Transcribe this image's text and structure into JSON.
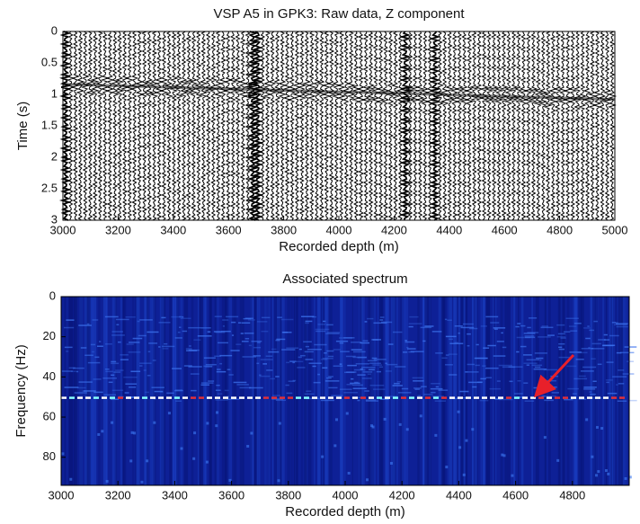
{
  "chart_data": [
    {
      "type": "wiggle",
      "title": "VSP A5 in GPK3: Raw data, Z component",
      "x_label": "Recorded depth (m)",
      "y_label": "Time (s)",
      "xlim": [
        3000,
        5000
      ],
      "xticks": [
        3000,
        3200,
        3400,
        3600,
        3800,
        4000,
        4200,
        4400,
        4600,
        4800,
        5000
      ],
      "ylim": [
        0,
        3
      ],
      "yticks": [
        0,
        0.5,
        1,
        1.5,
        2,
        2.5,
        3
      ],
      "y_reversed": true
    },
    {
      "type": "spectrogram",
      "title": "Associated spectrum",
      "x_label": "Recorded depth (m)",
      "y_label": "Frequency (Hz)",
      "xlim": [
        3000,
        5000
      ],
      "xticks": [
        3000,
        3200,
        3400,
        3600,
        3800,
        4000,
        4200,
        4400,
        4600,
        4800
      ],
      "ylim": [
        0,
        94
      ],
      "yticks": [
        0,
        20,
        40,
        60,
        80
      ],
      "y_reversed": true
    }
  ]
}
